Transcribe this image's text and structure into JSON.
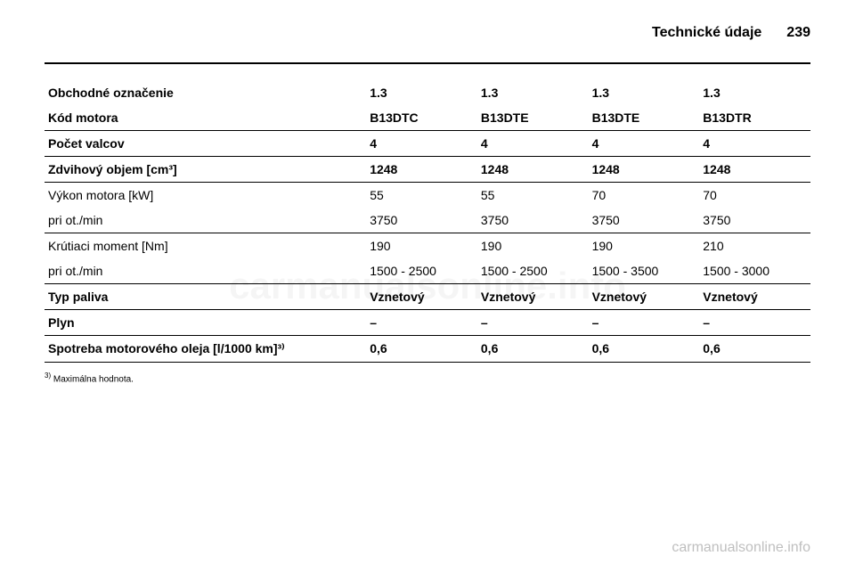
{
  "header": {
    "title": "Technické údaje",
    "page": "239"
  },
  "table": {
    "columns": [
      "",
      "",
      "",
      "",
      ""
    ],
    "rows": [
      {
        "bold": true,
        "divider": false,
        "cells": [
          "Obchodné označenie",
          "1.3",
          "1.3",
          "1.3",
          "1.3"
        ]
      },
      {
        "bold": true,
        "divider": true,
        "cells": [
          "Kód motora",
          "B13DTC",
          "B13DTE",
          "B13DTE",
          "B13DTR"
        ]
      },
      {
        "bold": true,
        "divider": true,
        "cells": [
          "Počet valcov",
          "4",
          "4",
          "4",
          "4"
        ]
      },
      {
        "bold": true,
        "divider": true,
        "cells": [
          "Zdvihový objem [cm³]",
          "1248",
          "1248",
          "1248",
          "1248"
        ]
      },
      {
        "bold": false,
        "divider": false,
        "cells": [
          "Výkon motora [kW]",
          "55",
          "55",
          "70",
          "70"
        ]
      },
      {
        "bold": false,
        "divider": true,
        "cells": [
          "pri ot./min",
          "3750",
          "3750",
          "3750",
          "3750"
        ]
      },
      {
        "bold": false,
        "divider": false,
        "cells": [
          "Krútiaci moment [Nm]",
          "190",
          "190",
          "190",
          "210"
        ]
      },
      {
        "bold": false,
        "divider": true,
        "cells": [
          "pri ot./min",
          "1500 - 2500",
          "1500 - 2500",
          "1500 - 3500",
          "1500 - 3000"
        ]
      },
      {
        "bold": true,
        "divider": true,
        "cells": [
          "Typ paliva",
          "Vznetový",
          "Vznetový",
          "Vznetový",
          "Vznetový"
        ]
      },
      {
        "bold": true,
        "divider": true,
        "cells": [
          "Plyn",
          "–",
          "–",
          "–",
          "–"
        ]
      },
      {
        "bold": true,
        "divider": true,
        "cells": [
          "Spotreba motorového oleja [l/1000 km]³⁾",
          "0,6",
          "0,6",
          "0,6",
          "0,6"
        ]
      }
    ]
  },
  "footnote": {
    "marker": "3)",
    "text": "Maximálna hodnota."
  },
  "watermarks": {
    "center": "carmanualsonline.info",
    "bottom": "carmanualsonline.info"
  }
}
